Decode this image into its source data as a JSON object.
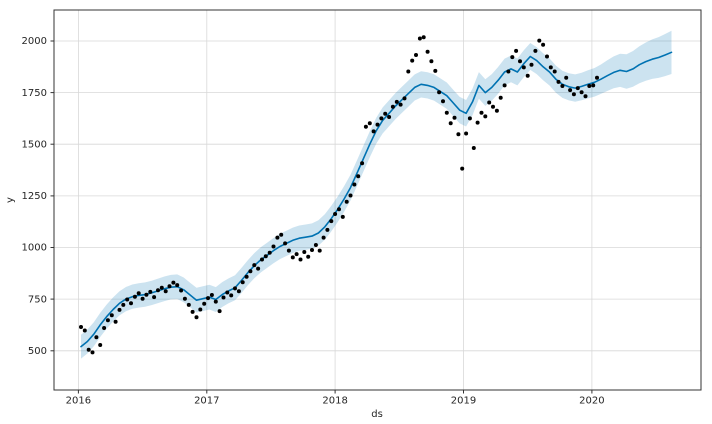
{
  "figure": {
    "background": "#ffffff"
  },
  "chart_data": {
    "type": "line",
    "title": "",
    "xlabel": "ds",
    "ylabel": "y",
    "grid": true,
    "legend": "none",
    "x_ticks": [
      2016,
      2017,
      2018,
      2019,
      2020
    ],
    "y_ticks": [
      500,
      750,
      1000,
      1250,
      1500,
      1750,
      2000
    ],
    "x_range": [
      2015.81,
      2020.85
    ],
    "y_range": [
      310,
      2150
    ],
    "colors": {
      "line": "#0072b2",
      "band_fill": "#0072b2",
      "band_opacity": 0.2,
      "scatter": "#000000",
      "grid": "#d8d8d8",
      "spine": "#333333",
      "tick_label": "#262626"
    },
    "scatter": {
      "x": [
        2016.02,
        2016.05,
        2016.08,
        2016.11,
        2016.14,
        2016.17,
        2016.2,
        2016.23,
        2016.26,
        2016.29,
        2016.32,
        2016.35,
        2016.38,
        2016.41,
        2016.44,
        2016.47,
        2016.5,
        2016.53,
        2016.56,
        2016.59,
        2016.62,
        2016.65,
        2016.68,
        2016.71,
        2016.74,
        2016.77,
        2016.8,
        2016.83,
        2016.86,
        2016.89,
        2016.92,
        2016.95,
        2016.98,
        2017.01,
        2017.04,
        2017.07,
        2017.1,
        2017.13,
        2017.16,
        2017.19,
        2017.22,
        2017.25,
        2017.28,
        2017.31,
        2017.34,
        2017.37,
        2017.4,
        2017.43,
        2017.46,
        2017.49,
        2017.52,
        2017.55,
        2017.58,
        2017.61,
        2017.64,
        2017.67,
        2017.7,
        2017.73,
        2017.76,
        2017.79,
        2017.82,
        2017.85,
        2017.88,
        2017.91,
        2017.94,
        2017.97,
        2018.0,
        2018.03,
        2018.06,
        2018.09,
        2018.12,
        2018.15,
        2018.18,
        2018.21,
        2018.24,
        2018.27,
        2018.3,
        2018.33,
        2018.36,
        2018.39,
        2018.42,
        2018.45,
        2018.48,
        2018.51,
        2018.54,
        2018.57,
        2018.6,
        2018.63,
        2018.66,
        2018.69,
        2018.72,
        2018.75,
        2018.78,
        2018.81,
        2018.84,
        2018.87,
        2018.9,
        2018.93,
        2018.96,
        2018.99,
        2019.02,
        2019.05,
        2019.08,
        2019.11,
        2019.14,
        2019.17,
        2019.2,
        2019.23,
        2019.26,
        2019.29,
        2019.32,
        2019.35,
        2019.38,
        2019.41,
        2019.44,
        2019.47,
        2019.5,
        2019.53,
        2019.56,
        2019.59,
        2019.62,
        2019.65,
        2019.68,
        2019.71,
        2019.74,
        2019.77,
        2019.8,
        2019.83,
        2019.86,
        2019.89,
        2019.92,
        2019.95,
        2019.98,
        2020.01,
        2020.04
      ],
      "y": [
        615,
        598,
        505,
        492,
        565,
        528,
        610,
        648,
        672,
        640,
        698,
        722,
        748,
        730,
        762,
        778,
        752,
        771,
        785,
        760,
        793,
        805,
        788,
        812,
        830,
        818,
        792,
        752,
        722,
        688,
        662,
        700,
        728,
        755,
        770,
        738,
        692,
        758,
        782,
        768,
        802,
        788,
        832,
        858,
        885,
        915,
        898,
        942,
        958,
        975,
        1005,
        1048,
        1062,
        1020,
        985,
        952,
        968,
        942,
        978,
        955,
        988,
        1012,
        985,
        1048,
        1085,
        1128,
        1162,
        1185,
        1148,
        1222,
        1252,
        1305,
        1345,
        1408,
        1585,
        1602,
        1562,
        1595,
        1625,
        1648,
        1632,
        1682,
        1705,
        1692,
        1722,
        1852,
        1905,
        1932,
        2012,
        2018,
        1948,
        1902,
        1855,
        1752,
        1708,
        1652,
        1602,
        1628,
        1548,
        1382,
        1552,
        1625,
        1482,
        1605,
        1652,
        1635,
        1702,
        1682,
        1662,
        1725,
        1785,
        1852,
        1922,
        1952,
        1902,
        1872,
        1832,
        1885,
        1952,
        2002,
        1982,
        1925,
        1872,
        1852,
        1802,
        1782,
        1822,
        1762,
        1742,
        1772,
        1752,
        1732,
        1782,
        1785,
        1822
      ]
    },
    "forecast": {
      "x": [
        2016.02,
        2016.07,
        2016.12,
        2016.17,
        2016.22,
        2016.27,
        2016.32,
        2016.37,
        2016.42,
        2016.47,
        2016.52,
        2016.57,
        2016.62,
        2016.67,
        2016.72,
        2016.77,
        2016.82,
        2016.87,
        2016.92,
        2016.97,
        2017.02,
        2017.07,
        2017.12,
        2017.17,
        2017.22,
        2017.27,
        2017.32,
        2017.37,
        2017.42,
        2017.47,
        2017.52,
        2017.57,
        2017.62,
        2017.67,
        2017.72,
        2017.77,
        2017.82,
        2017.87,
        2017.92,
        2017.97,
        2018.02,
        2018.07,
        2018.12,
        2018.17,
        2018.22,
        2018.27,
        2018.32,
        2018.37,
        2018.42,
        2018.47,
        2018.52,
        2018.57,
        2018.62,
        2018.67,
        2018.72,
        2018.77,
        2018.82,
        2018.87,
        2018.92,
        2018.97,
        2019.02,
        2019.07,
        2019.12,
        2019.17,
        2019.22,
        2019.27,
        2019.32,
        2019.37,
        2019.42,
        2019.47,
        2019.52,
        2019.57,
        2019.62,
        2019.67,
        2019.72,
        2019.77,
        2019.82,
        2019.87,
        2019.92,
        2019.97,
        2020.02,
        2020.07,
        2020.12,
        2020.17,
        2020.22,
        2020.27,
        2020.32,
        2020.37,
        2020.42,
        2020.47,
        2020.52,
        2020.57,
        2020.62
      ],
      "yhat": [
        520,
        545,
        580,
        625,
        665,
        700,
        730,
        750,
        762,
        768,
        772,
        780,
        790,
        800,
        808,
        810,
        795,
        770,
        745,
        752,
        760,
        748,
        772,
        790,
        805,
        840,
        878,
        912,
        940,
        962,
        985,
        1005,
        1020,
        1035,
        1045,
        1050,
        1055,
        1070,
        1100,
        1140,
        1185,
        1235,
        1290,
        1360,
        1430,
        1500,
        1565,
        1615,
        1650,
        1685,
        1715,
        1745,
        1775,
        1790,
        1785,
        1775,
        1755,
        1735,
        1700,
        1665,
        1650,
        1705,
        1785,
        1750,
        1775,
        1810,
        1850,
        1865,
        1850,
        1890,
        1925,
        1905,
        1875,
        1850,
        1815,
        1790,
        1778,
        1772,
        1780,
        1790,
        1800,
        1815,
        1832,
        1848,
        1858,
        1852,
        1865,
        1885,
        1900,
        1912,
        1920,
        1932,
        1945
      ]
    },
    "band": {
      "x": [
        2016.02,
        2019.9,
        2020.05,
        2020.62
      ],
      "half_width": [
        58,
        66,
        70,
        105
      ]
    }
  }
}
